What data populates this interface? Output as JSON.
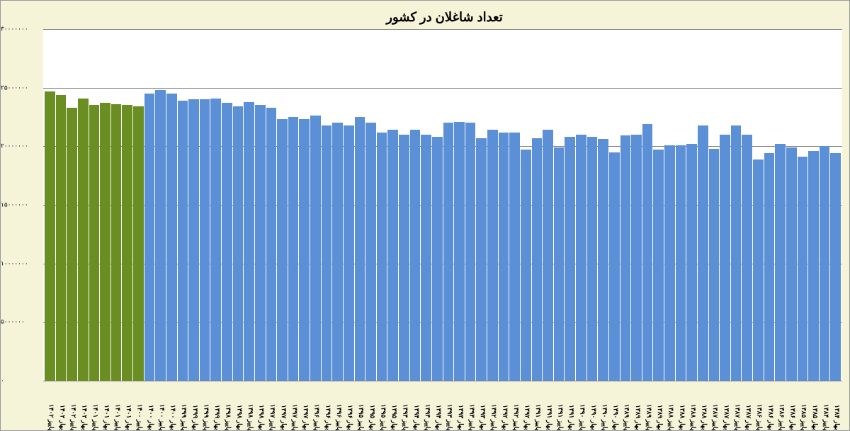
{
  "chart": {
    "type": "bar",
    "title": "تعداد شاغلان در کشور",
    "title_fontsize": 18,
    "background_color": "#f5f3d8",
    "plot_background": "#ffffff",
    "grid_color": "#808080",
    "ylim": [
      0,
      30000000
    ],
    "ytick_step": 5000000,
    "yticks": [
      "۰",
      "۵۰۰۰۰۰۰",
      "۱۰۰۰۰۰۰۰",
      "۱۵۰۰۰۰۰۰",
      "۲۰۰۰۰۰۰۰",
      "۲۵۰۰۰۰۰۰",
      "۳۰۰۰۰۰۰۰"
    ],
    "blue_color": "#5b8fd6",
    "green_color": "#6b8e23",
    "categories": [
      "بهار ۱۳۸۴",
      "پاییز ۱۳۸۴",
      "بهار ۱۳۸۵",
      "پاییز ۱۳۸۵",
      "بهار ۱۳۸۶",
      "پاییز ۱۳۸۶",
      "بهار ۱۳۸۶",
      "پاییز ۱۳۸۶",
      "بهار ۱۳۸۷",
      "پاییز ۱۳۸۷",
      "بهار ۱۳۸۷",
      "پاییز ۱۳۸۷",
      "بهار ۱۳۸۸",
      "پاییز ۱۳۸۸",
      "بهار ۱۳۸۸",
      "پاییز ۱۳۸۸",
      "بهار ۱۳۸۹",
      "پاییز ۱۳۸۹",
      "بهار ۱۳۸۹",
      "پاییز ۱۳۸۹",
      "بهار ۱۳۹۰",
      "پاییز ۱۳۹۰",
      "بهار ۱۳۹۰",
      "پاییز ۱۳۹۰",
      "بهار ۱۳۹۱",
      "پاییز ۱۳۹۱",
      "بهار ۱۳۹۱",
      "پاییز ۱۳۹۱",
      "بهار ۱۳۹۲",
      "پاییز ۱۳۹۲",
      "بهار ۱۳۹۲",
      "پاییز ۱۳۹۲",
      "بهار ۱۳۹۳",
      "پاییز ۱۳۹۳",
      "بهار ۱۳۹۳",
      "پاییز ۱۳۹۳",
      "بهار ۱۳۹۴",
      "پاییز ۱۳۹۴",
      "بهار ۱۳۹۴",
      "پاییز ۱۳۹۴",
      "بهار ۱۳۹۵",
      "پاییز ۱۳۹۵",
      "بهار ۱۳۹۵",
      "پاییز ۱۳۹۵",
      "بهار ۱۳۹۶",
      "پاییز ۱۳۹۶",
      "بهار ۱۳۹۶",
      "پاییز ۱۳۹۶",
      "بهار ۱۳۹۷",
      "پاییز ۱۳۹۷",
      "بهار ۱۳۹۷",
      "پاییز ۱۳۹۷",
      "بهار ۱۳۹۸",
      "پاییز ۱۳۹۸",
      "بهار ۱۳۹۸",
      "پاییز ۱۳۹۸",
      "بهار ۱۳۹۹",
      "پاییز ۱۳۹۹",
      "بهار ۱۳۹۹",
      "پاییز ۱۳۹۹",
      "بهار ۱۴۰۰",
      "پاییز ۱۴۰۰",
      "بهار ۱۴۰۰",
      "پاییز ۱۴۰۰",
      "بهار ۱۴۰۱",
      "پاییز ۱۴۰۱",
      "بهار ۱۴۰۱",
      "پاییز ۱۴۰۱",
      "بهار ۱۴۰۲",
      "پاییز ۱۴۰۲",
      "بهار ۱۴۰۲",
      "پاییز ۱۴۰۲"
    ],
    "values": [
      19400000,
      20000000,
      19600000,
      19100000,
      19900000,
      20200000,
      19400000,
      18900000,
      21000000,
      21800000,
      21000000,
      19800000,
      21800000,
      20200000,
      20100000,
      20100000,
      19700000,
      21900000,
      21000000,
      20900000,
      19500000,
      20600000,
      20800000,
      21000000,
      20800000,
      19900000,
      21400000,
      20700000,
      19700000,
      21200000,
      21200000,
      21400000,
      20700000,
      22000000,
      22100000,
      22000000,
      20800000,
      21000000,
      21400000,
      21000000,
      21400000,
      21200000,
      22000000,
      22500000,
      21800000,
      22000000,
      21800000,
      22600000,
      22300000,
      22500000,
      22300000,
      23300000,
      23500000,
      23800000,
      23400000,
      23700000,
      24100000,
      24000000,
      24000000,
      23900000,
      24500000,
      24800000,
      24500000,
      23400000,
      23000000,
      23400000,
      23500000,
      23100000,
      23200000,
      23200000,
      23600000,
      23400000
    ],
    "green_start_index": 63,
    "green_values": [
      23400000,
      23500000,
      23600000,
      23700000,
      23500000,
      24100000,
      23300000,
      24400000,
      24700000
    ],
    "green_categories": [
      "پاییز ۱۴۰۰",
      "بهار ۱۴۰۱",
      "پاییز ۱۴۰۱",
      "بهار ۱۴۰۱",
      "پاییز ۱۴۰۱",
      "بهار ۱۴۰۲",
      "پاییز ۱۴۰۲",
      "بهار ۱۴۰۲",
      "پاییز ۱۴۰۲"
    ]
  }
}
